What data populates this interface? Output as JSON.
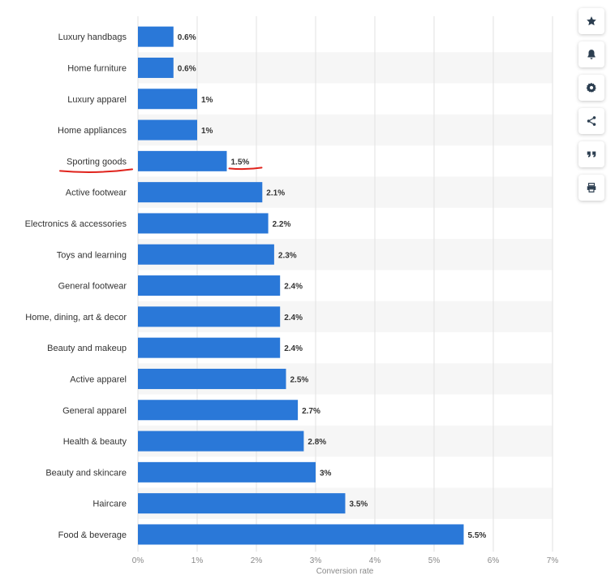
{
  "chart_data": {
    "type": "bar",
    "orientation": "horizontal",
    "categories": [
      "Luxury handbags",
      "Home furniture",
      "Luxury apparel",
      "Home appliances",
      "Sporting goods",
      "Active footwear",
      "Electronics & accessories",
      "Toys and learning",
      "General footwear",
      "Home, dining, art & decor",
      "Beauty and makeup",
      "Active apparel",
      "General apparel",
      "Health & beauty",
      "Beauty and skincare",
      "Haircare",
      "Food & beverage"
    ],
    "values": [
      0.6,
      0.6,
      1,
      1,
      1.5,
      2.1,
      2.2,
      2.3,
      2.4,
      2.4,
      2.4,
      2.5,
      2.7,
      2.8,
      3,
      3.5,
      5.5
    ],
    "value_labels": [
      "0.6%",
      "0.6%",
      "1%",
      "1%",
      "1.5%",
      "2.1%",
      "2.2%",
      "2.3%",
      "2.4%",
      "2.4%",
      "2.4%",
      "2.5%",
      "2.7%",
      "2.8%",
      "3%",
      "3.5%",
      "5.5%"
    ],
    "xlim": [
      0,
      7
    ],
    "x_ticks": [
      0,
      1,
      2,
      3,
      4,
      5,
      6,
      7
    ],
    "x_tick_labels": [
      "0%",
      "1%",
      "2%",
      "3%",
      "4%",
      "5%",
      "6%",
      "7%"
    ],
    "xlabel": "Conversion rate",
    "ylabel": "",
    "title": "",
    "grid": true,
    "alternating_row_bands": true,
    "highlighted_category": "Sporting goods",
    "colors": {
      "bar": "#2a78d8",
      "band": "#f6f6f6",
      "grid": "#e2e2e2",
      "annotation": "#e0231c"
    }
  },
  "toolbar": [
    {
      "name": "star-icon"
    },
    {
      "name": "bell-icon"
    },
    {
      "name": "gear-icon"
    },
    {
      "name": "share-icon"
    },
    {
      "name": "quote-icon"
    },
    {
      "name": "print-icon"
    }
  ]
}
